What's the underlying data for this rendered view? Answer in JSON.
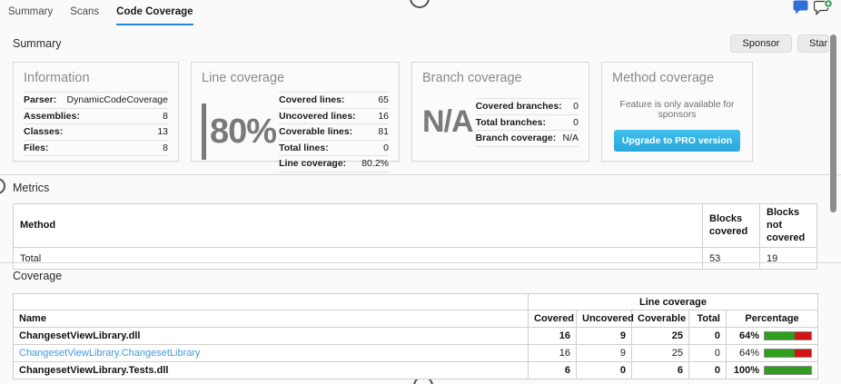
{
  "tabs": [
    {
      "label": "Summary"
    },
    {
      "label": "Scans"
    },
    {
      "label": "Code Coverage"
    }
  ],
  "header": {
    "title": "Summary",
    "sponsor": "Sponsor",
    "star": "Star"
  },
  "cards": {
    "information": {
      "title": "Information",
      "rows": [
        [
          "Parser:",
          "DynamicCodeCoverage"
        ],
        [
          "Assemblies:",
          "8"
        ],
        [
          "Classes:",
          "13"
        ],
        [
          "Files:",
          "8"
        ]
      ]
    },
    "line_coverage": {
      "title": "Line coverage",
      "big_value": "80%",
      "rows": [
        [
          "Covered lines:",
          "65"
        ],
        [
          "Uncovered lines:",
          "16"
        ],
        [
          "Coverable lines:",
          "81"
        ],
        [
          "Total lines:",
          "0"
        ],
        [
          "Line coverage:",
          "80.2%"
        ]
      ]
    },
    "branch_coverage": {
      "title": "Branch coverage",
      "big_value": "N/A",
      "rows": [
        [
          "Covered branches:",
          "0"
        ],
        [
          "Total branches:",
          "0"
        ],
        [
          "Branch coverage:",
          "N/A"
        ]
      ]
    },
    "method_coverage": {
      "title": "Method coverage",
      "notice": "Feature is only available for sponsors",
      "button": "Upgrade to PRO version"
    }
  },
  "metrics": {
    "title": "Metrics",
    "headers": [
      "Method",
      "Blocks covered",
      "Blocks not covered"
    ],
    "rows": [
      {
        "method": "Total",
        "blocks_covered": "53",
        "blocks_not_covered": "19"
      }
    ]
  },
  "coverage": {
    "title": "Coverage",
    "group_header": "Line coverage",
    "headers": [
      "Name",
      "Covered",
      "Uncovered",
      "Coverable",
      "Total",
      "Percentage"
    ],
    "rows": [
      {
        "name": "ChangesetViewLibrary.dll",
        "covered": "16",
        "uncovered": "9",
        "coverable": "25",
        "total": "0",
        "percentage": "64%",
        "pct": 64
      },
      {
        "name": "ChangesetViewLibrary.ChangesetLibrary",
        "covered": "16",
        "uncovered": "9",
        "coverable": "25",
        "total": "0",
        "percentage": "64%",
        "pct": 64
      },
      {
        "name": "ChangesetViewLibrary.Tests.dll",
        "covered": "6",
        "uncovered": "0",
        "coverable": "6",
        "total": "0",
        "percentage": "100%",
        "pct": 100
      }
    ]
  },
  "colors": {
    "tab_accent": "#2b88d8",
    "link_blue": "#3f9bd8",
    "bar_green": "#2f9e1e",
    "bar_red": "#d21414",
    "pro_button": "#34b1e2",
    "metric_gray": "#7a7a7a",
    "comment_blue": "#2f6fd6",
    "badge_green": "#2e9b4e"
  }
}
